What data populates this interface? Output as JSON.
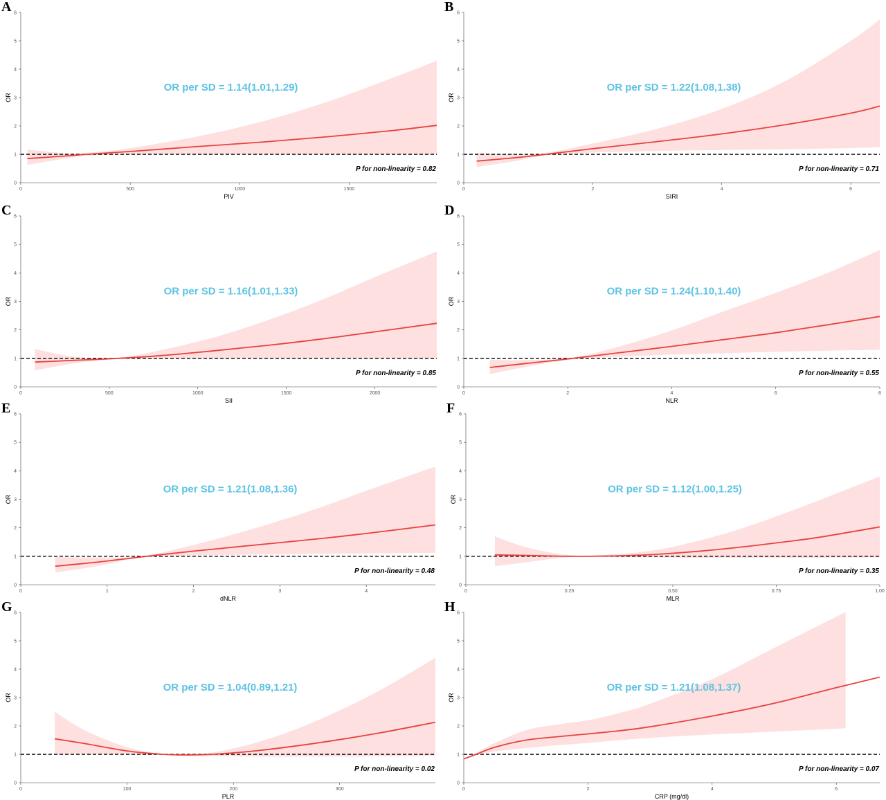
{
  "colors": {
    "curve": "#e8413c",
    "ribbon": "#fde0df",
    "annotation": "#5bc3e3",
    "reference": "#000000"
  },
  "chart_data": [
    {
      "panel": "A",
      "type": "line",
      "xlabel": "PIV",
      "ylabel": "OR",
      "xlim": [
        0,
        1900
      ],
      "ylim": [
        0,
        6
      ],
      "xticks": [
        0,
        500,
        1000,
        1500
      ],
      "yticks": [
        0,
        1,
        2,
        3,
        4,
        5,
        6
      ],
      "reference_y": 1,
      "annotation": "OR per SD = 1.14(1.01,1.29)",
      "p_text": "P for non-linearity = 0.82",
      "series": [
        {
          "role": "estimate",
          "x": [
            30,
            200,
            300,
            500,
            800,
            1100,
            1400,
            1700,
            1900
          ],
          "y": [
            0.85,
            0.94,
            1.0,
            1.1,
            1.27,
            1.43,
            1.62,
            1.84,
            2.02
          ]
        },
        {
          "role": "upper",
          "x": [
            30,
            200,
            300,
            500,
            800,
            1100,
            1400,
            1700,
            1900
          ],
          "y": [
            1.17,
            1.04,
            1.05,
            1.22,
            1.62,
            2.15,
            2.85,
            3.7,
            4.3
          ]
        },
        {
          "role": "lower",
          "x": [
            30,
            200,
            300,
            500,
            800,
            1100,
            1400,
            1700,
            1900
          ],
          "y": [
            0.63,
            0.85,
            0.95,
            1.0,
            1.0,
            1.0,
            1.0,
            1.0,
            1.0
          ]
        }
      ]
    },
    {
      "panel": "B",
      "type": "line",
      "xlabel": "SIRI",
      "ylabel": "OR",
      "xlim": [
        0,
        6.45
      ],
      "ylim": [
        0,
        6
      ],
      "xticks": [
        0,
        2,
        4,
        6
      ],
      "yticks": [
        0,
        1,
        2,
        3,
        4,
        5,
        6
      ],
      "reference_y": 1,
      "annotation": "OR per SD = 1.22(1.08,1.38)",
      "p_text": "P for non-linearity = 0.71",
      "series": [
        {
          "role": "estimate",
          "x": [
            0.2,
            0.8,
            1.2,
            2,
            3,
            4,
            5,
            6,
            6.45
          ],
          "y": [
            0.76,
            0.88,
            0.98,
            1.2,
            1.45,
            1.72,
            2.05,
            2.45,
            2.7
          ]
        },
        {
          "role": "upper",
          "x": [
            0.2,
            0.8,
            1.2,
            2,
            3,
            4,
            5,
            6,
            6.45
          ],
          "y": [
            1.05,
            1.0,
            1.02,
            1.38,
            1.9,
            2.6,
            3.6,
            5.0,
            5.75
          ]
        },
        {
          "role": "lower",
          "x": [
            0.2,
            0.8,
            1.2,
            2,
            3,
            4,
            5,
            6,
            6.45
          ],
          "y": [
            0.55,
            0.76,
            0.95,
            1.06,
            1.12,
            1.15,
            1.18,
            1.22,
            1.25
          ]
        }
      ]
    },
    {
      "panel": "C",
      "type": "line",
      "xlabel": "SII",
      "ylabel": "OR",
      "xlim": [
        0,
        2350
      ],
      "ylim": [
        0,
        6
      ],
      "xticks": [
        0,
        500,
        1000,
        1500,
        2000
      ],
      "yticks": [
        0,
        1,
        2,
        3,
        4,
        5,
        6
      ],
      "reference_y": 1,
      "annotation": "OR per SD = 1.16(1.01,1.33)",
      "p_text": "P for non-linearity = 0.85",
      "series": [
        {
          "role": "estimate",
          "x": [
            80,
            300,
            550,
            800,
            1100,
            1400,
            1700,
            2000,
            2350
          ],
          "y": [
            0.87,
            0.93,
            1.0,
            1.1,
            1.27,
            1.46,
            1.68,
            1.93,
            2.23
          ]
        },
        {
          "role": "upper",
          "x": [
            80,
            300,
            550,
            800,
            1100,
            1400,
            1700,
            2000,
            2350
          ],
          "y": [
            1.33,
            1.06,
            1.02,
            1.3,
            1.75,
            2.35,
            3.05,
            3.85,
            4.75
          ]
        },
        {
          "role": "lower",
          "x": [
            80,
            300,
            550,
            800,
            1100,
            1400,
            1700,
            2000,
            2350
          ],
          "y": [
            0.58,
            0.82,
            0.98,
            1.0,
            1.0,
            1.0,
            1.0,
            1.0,
            1.0
          ]
        }
      ]
    },
    {
      "panel": "D",
      "type": "line",
      "xlabel": "NLR",
      "ylabel": "OR",
      "xlim": [
        0,
        8
      ],
      "ylim": [
        0,
        6
      ],
      "xticks": [
        0,
        2,
        4,
        6,
        8
      ],
      "yticks": [
        0,
        1,
        2,
        3,
        4,
        5,
        6
      ],
      "reference_y": 1,
      "annotation": "OR per SD = 1.24(1.10,1.40)",
      "p_text": "P for non-linearity = 0.55",
      "series": [
        {
          "role": "estimate",
          "x": [
            0.5,
            1.2,
            2.1,
            3,
            4,
            5,
            6,
            7,
            8
          ],
          "y": [
            0.68,
            0.82,
            1.0,
            1.2,
            1.42,
            1.66,
            1.9,
            2.18,
            2.47
          ]
        },
        {
          "role": "upper",
          "x": [
            0.5,
            1.2,
            2.1,
            3,
            4,
            5,
            6,
            7,
            8
          ],
          "y": [
            0.95,
            0.94,
            1.03,
            1.42,
            1.98,
            2.65,
            3.3,
            4.0,
            4.8
          ]
        },
        {
          "role": "lower",
          "x": [
            0.5,
            1.2,
            2.1,
            3,
            4,
            5,
            6,
            7,
            8
          ],
          "y": [
            0.45,
            0.7,
            0.97,
            1.06,
            1.13,
            1.18,
            1.23,
            1.27,
            1.3
          ]
        }
      ]
    },
    {
      "panel": "E",
      "type": "line",
      "xlabel": "dNLR",
      "ylabel": "OR",
      "xlim": [
        0,
        4.8
      ],
      "ylim": [
        0,
        6
      ],
      "xticks": [
        0,
        1,
        2,
        3,
        4
      ],
      "yticks": [
        0,
        1,
        2,
        3,
        4,
        5,
        6
      ],
      "reference_y": 1,
      "annotation": "OR per SD = 1.21(1.08,1.36)",
      "p_text": "P for non-linearity = 0.48",
      "series": [
        {
          "role": "estimate",
          "x": [
            0.4,
            0.9,
            1.4,
            2,
            2.5,
            3,
            3.5,
            4,
            4.8
          ],
          "y": [
            0.65,
            0.8,
            0.98,
            1.18,
            1.33,
            1.48,
            1.63,
            1.8,
            2.1
          ]
        },
        {
          "role": "upper",
          "x": [
            0.4,
            0.9,
            1.4,
            2,
            2.5,
            3,
            3.5,
            4,
            4.8
          ],
          "y": [
            0.97,
            0.96,
            1.0,
            1.4,
            1.8,
            2.25,
            2.75,
            3.3,
            4.15
          ]
        },
        {
          "role": "lower",
          "x": [
            0.4,
            0.9,
            1.4,
            2,
            2.5,
            3,
            3.5,
            4,
            4.8
          ],
          "y": [
            0.43,
            0.66,
            0.96,
            1.03,
            1.05,
            1.07,
            1.09,
            1.1,
            1.12
          ]
        }
      ]
    },
    {
      "panel": "F",
      "type": "line",
      "xlabel": "MLR",
      "ylabel": "OR",
      "xlim": [
        0,
        1
      ],
      "ylim": [
        0,
        6
      ],
      "xticks": [
        0,
        0.25,
        0.5,
        0.75,
        1
      ],
      "xticklabels": [
        "0",
        "0.25",
        "0.50",
        "0.75",
        "1.00"
      ],
      "yticks": [
        0,
        1,
        2,
        3,
        4,
        5,
        6
      ],
      "reference_y": 1,
      "annotation": "OR per SD = 1.12(1.00,1.25)",
      "p_text": "P for non-linearity = 0.35",
      "series": [
        {
          "role": "estimate",
          "x": [
            0.07,
            0.15,
            0.25,
            0.35,
            0.45,
            0.55,
            0.65,
            0.75,
            0.85,
            1.0
          ],
          "y": [
            1.05,
            1.03,
            1.0,
            1.01,
            1.06,
            1.16,
            1.3,
            1.47,
            1.66,
            2.03
          ]
        },
        {
          "role": "upper",
          "x": [
            0.07,
            0.15,
            0.25,
            0.35,
            0.45,
            0.55,
            0.65,
            0.75,
            0.85,
            1.0
          ],
          "y": [
            1.7,
            1.3,
            1.04,
            1.06,
            1.2,
            1.5,
            1.9,
            2.4,
            2.95,
            3.8
          ]
        },
        {
          "role": "lower",
          "x": [
            0.07,
            0.15,
            0.25,
            0.35,
            0.45,
            0.55,
            0.65,
            0.75,
            0.85,
            1.0
          ],
          "y": [
            0.65,
            0.8,
            0.97,
            0.97,
            0.96,
            0.95,
            0.95,
            0.95,
            0.95,
            0.96
          ]
        }
      ]
    },
    {
      "panel": "G",
      "type": "line",
      "xlabel": "PLR",
      "ylabel": "OR",
      "xlim": [
        0,
        390
      ],
      "ylim": [
        0,
        6
      ],
      "xticks": [
        0,
        100,
        200,
        300
      ],
      "yticks": [
        0,
        1,
        2,
        3,
        4,
        5,
        6
      ],
      "reference_y": 1,
      "annotation": "OR per SD = 1.04(0.89,1.21)",
      "p_text": "P for non-linearity = 0.02",
      "series": [
        {
          "role": "estimate",
          "x": [
            32,
            60,
            100,
            130,
            150,
            180,
            220,
            260,
            300,
            340,
            390
          ],
          "y": [
            1.55,
            1.38,
            1.12,
            1.01,
            0.98,
            1.0,
            1.12,
            1.3,
            1.52,
            1.77,
            2.13
          ]
        },
        {
          "role": "upper",
          "x": [
            32,
            60,
            100,
            130,
            150,
            180,
            220,
            260,
            300,
            340,
            390
          ],
          "y": [
            2.5,
            1.85,
            1.25,
            1.04,
            1.0,
            1.06,
            1.4,
            1.9,
            2.55,
            3.3,
            4.4
          ]
        },
        {
          "role": "lower",
          "x": [
            32,
            60,
            100,
            130,
            150,
            180,
            220,
            260,
            300,
            340,
            390
          ],
          "y": [
            1.0,
            1.02,
            1.0,
            0.98,
            0.95,
            0.93,
            0.92,
            0.92,
            0.92,
            0.93,
            0.95
          ]
        }
      ]
    },
    {
      "panel": "H",
      "type": "line",
      "xlabel": "CRP (mg/dl)",
      "ylabel": "OR",
      "xlim": [
        0,
        6.7
      ],
      "ylim": [
        0,
        6
      ],
      "xticks": [
        0,
        2,
        4,
        6
      ],
      "yticks": [
        0,
        1,
        2,
        3,
        4,
        5,
        6
      ],
      "reference_y": 1,
      "annotation": "OR per SD = 1.21(1.08,1.37)",
      "p_text": "P for non-linearity = 0.07",
      "series": [
        {
          "role": "estimate",
          "x": [
            0,
            0.2,
            0.5,
            1.0,
            1.5,
            2,
            2.5,
            3,
            4,
            5,
            6,
            6.7
          ],
          "y": [
            0.84,
            1.0,
            1.25,
            1.5,
            1.62,
            1.72,
            1.83,
            1.97,
            2.35,
            2.8,
            3.35,
            3.72
          ]
        },
        {
          "role": "upper",
          "x": [
            0.05,
            0.2,
            0.5,
            1.0,
            1.5,
            2,
            2.5,
            3,
            4,
            5,
            6,
            6.15
          ],
          "y": [
            0.88,
            1.05,
            1.4,
            1.85,
            2.05,
            2.2,
            2.45,
            2.78,
            3.65,
            4.75,
            5.85,
            6.0
          ]
        },
        {
          "role": "lower",
          "x": [
            0.05,
            0.2,
            0.5,
            1.0,
            1.5,
            2,
            2.5,
            3,
            4,
            5,
            6,
            6.15
          ],
          "y": [
            0.85,
            0.97,
            1.1,
            1.22,
            1.32,
            1.4,
            1.5,
            1.58,
            1.7,
            1.8,
            1.9,
            1.92
          ]
        }
      ]
    }
  ]
}
